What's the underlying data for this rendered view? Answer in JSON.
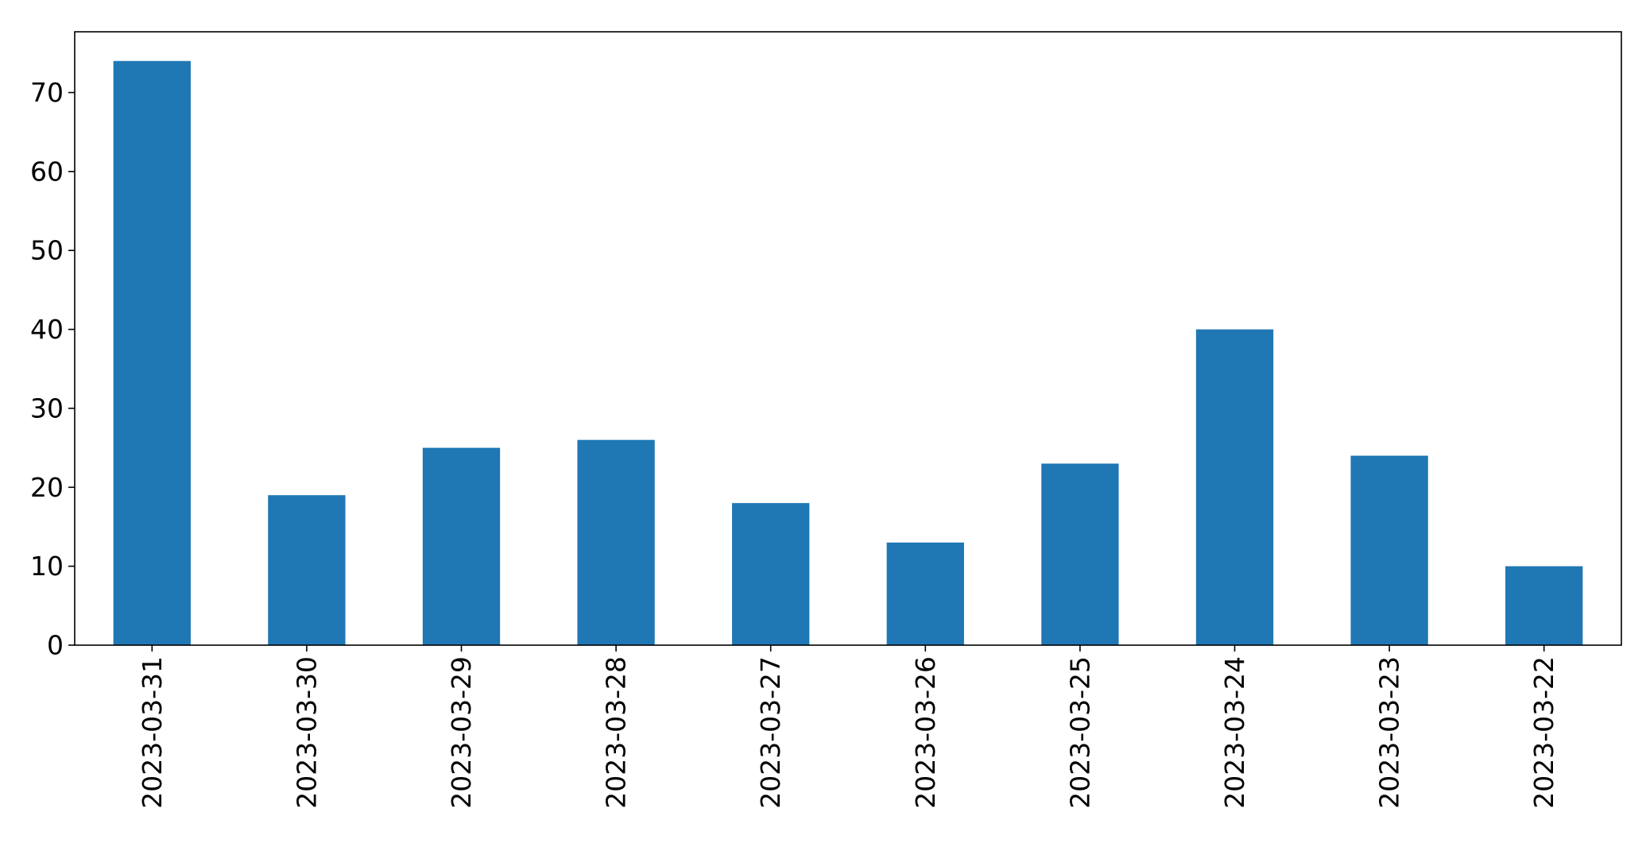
{
  "chart_data": {
    "type": "bar",
    "title": "",
    "xlabel": "",
    "ylabel": "",
    "categories": [
      "2023-03-31",
      "2023-03-30",
      "2023-03-29",
      "2023-03-28",
      "2023-03-27",
      "2023-03-26",
      "2023-03-25",
      "2023-03-24",
      "2023-03-23",
      "2023-03-22"
    ],
    "values": [
      74,
      19,
      25,
      26,
      18,
      13,
      23,
      40,
      24,
      10
    ],
    "ylim": [
      0,
      77.7
    ],
    "yticks": [
      0,
      10,
      20,
      30,
      40,
      50,
      60,
      70
    ],
    "x_tick_rotation": "vertical",
    "grid": false,
    "legend": "none",
    "bar_color": "#1f77b4"
  }
}
